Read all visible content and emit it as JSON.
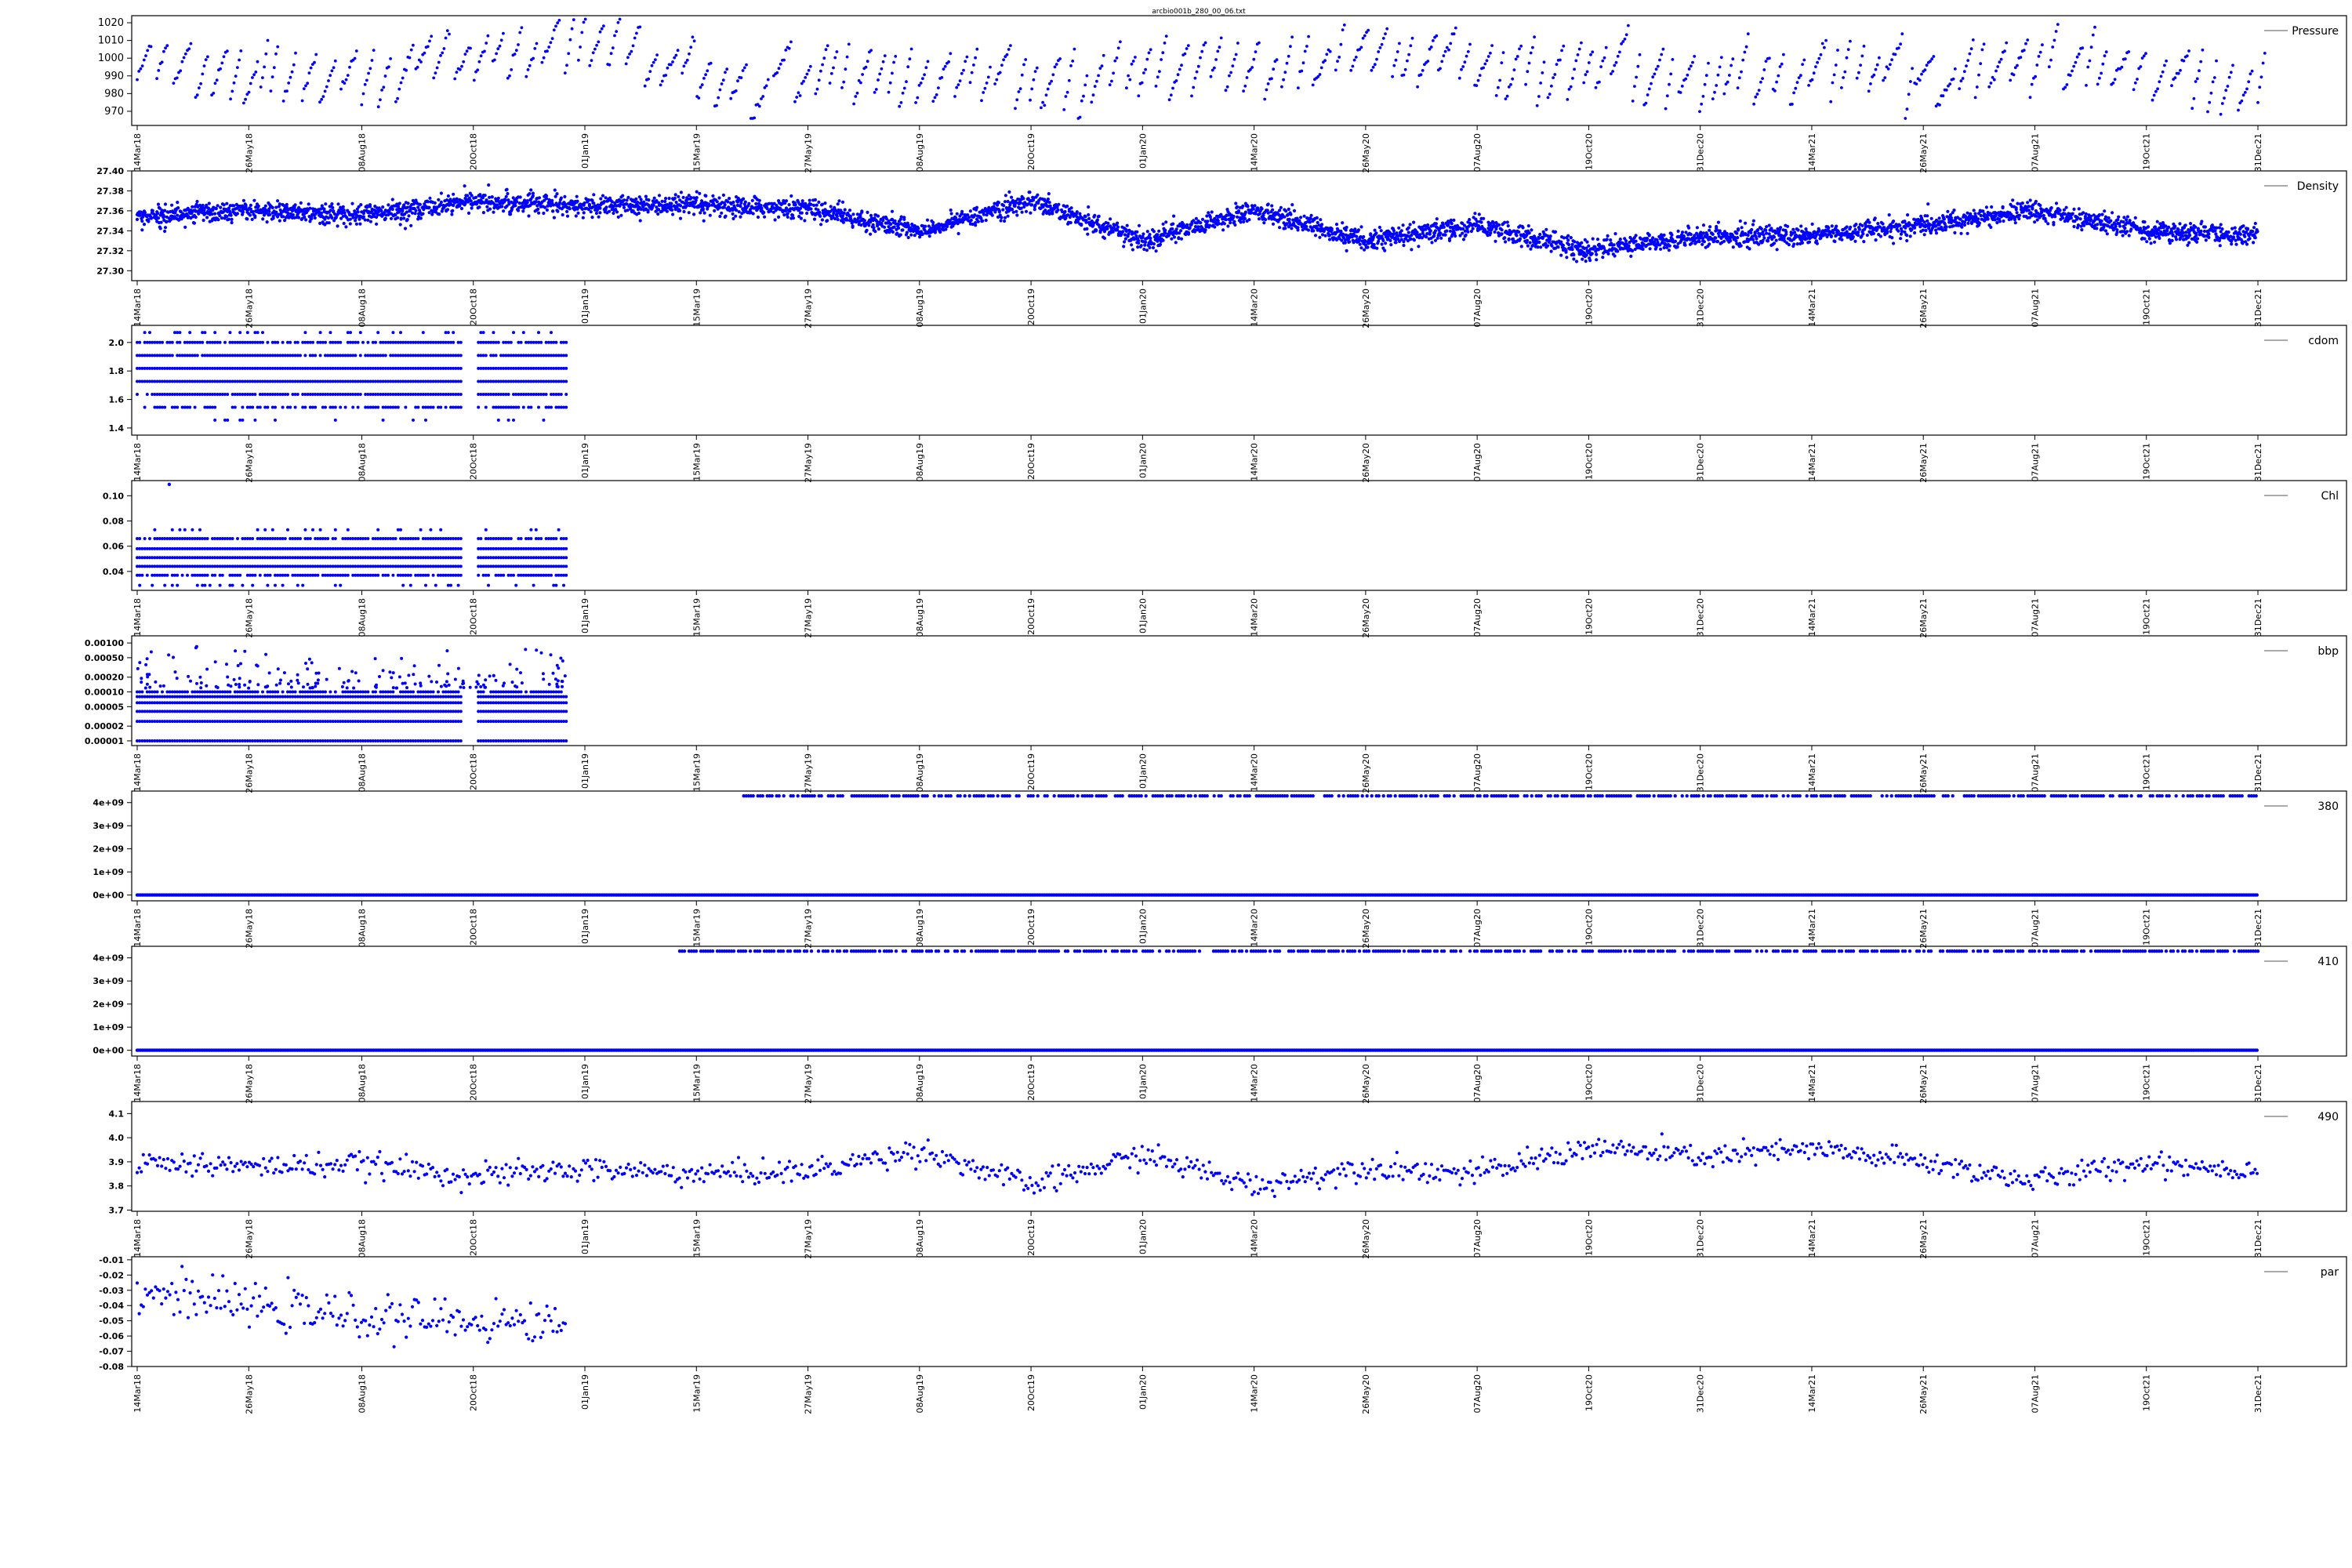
{
  "figure": {
    "title": "arcbio001b_280_00_06.txt"
  },
  "x_ticks": [
    "14Mar18",
    "26May18",
    "08Aug18",
    "20Oct18",
    "01Jan19",
    "15Mar19",
    "27May19",
    "08Aug19",
    "20Oct19",
    "01Jan20",
    "14Mar20",
    "26May20",
    "07Aug20",
    "19Oct20",
    "31Dec20",
    "14Mar21",
    "26May21",
    "07Aug21",
    "19Oct21",
    "31Dec21"
  ],
  "colors": {
    "series": "#0000ff",
    "axes": "#000000",
    "legend_line": "#555555"
  },
  "chart_data": [
    {
      "type": "scatter",
      "legend": "Pressure",
      "legend_position": "top-right",
      "x_range": [
        "14Mar18",
        "31Dec21"
      ],
      "ylim": [
        962,
        1024
      ],
      "yscale": "linear",
      "y_ticks": [
        "970",
        "980",
        "990",
        "1000",
        "1010",
        "1020"
      ],
      "y_tick_values": [
        970,
        980,
        990,
        1000,
        1010,
        1020
      ],
      "data_coverage": [
        "14Mar18",
        "31Dec21"
      ],
      "pattern": "sawtooth",
      "typical_range": [
        968,
        1008
      ],
      "mean": 990,
      "sample_points": [
        {
          "x": "14Mar18",
          "y": 995
        },
        {
          "x": "26May18",
          "y": 990
        },
        {
          "x": "08Aug18",
          "y": 992
        },
        {
          "x": "20Oct18",
          "y": 998
        },
        {
          "x": "01Jan19",
          "y": 1015
        },
        {
          "x": "15Mar19",
          "y": 985
        },
        {
          "x": "27May19",
          "y": 990
        },
        {
          "x": "08Aug19",
          "y": 993
        },
        {
          "x": "20Oct19",
          "y": 990
        },
        {
          "x": "01Jan20",
          "y": 988
        },
        {
          "x": "14Mar20",
          "y": 995
        },
        {
          "x": "26May20",
          "y": 1005
        },
        {
          "x": "07Aug20",
          "y": 995
        },
        {
          "x": "19Oct20",
          "y": 993
        },
        {
          "x": "31Dec20",
          "y": 988
        },
        {
          "x": "14Mar21",
          "y": 995
        },
        {
          "x": "26May21",
          "y": 990
        },
        {
          "x": "07Aug21",
          "y": 997
        },
        {
          "x": "19Oct21",
          "y": 993
        },
        {
          "x": "31Dec21",
          "y": 985
        }
      ]
    },
    {
      "type": "scatter",
      "legend": "Density",
      "legend_position": "top-right",
      "x_range": [
        "14Mar18",
        "31Dec21"
      ],
      "ylim": [
        27.29,
        27.4
      ],
      "yscale": "linear",
      "y_ticks": [
        "27.30",
        "27.32",
        "27.34",
        "27.36",
        "27.38",
        "27.40"
      ],
      "y_tick_values": [
        27.3,
        27.32,
        27.34,
        27.36,
        27.38,
        27.4
      ],
      "data_coverage": [
        "14Mar18",
        "31Dec21"
      ],
      "pattern": "band",
      "band_halfwidth": 0.009,
      "trend": [
        {
          "x": "14Mar18",
          "y": 27.355
        },
        {
          "x": "26May18",
          "y": 27.36
        },
        {
          "x": "08Aug18",
          "y": 27.355
        },
        {
          "x": "20Oct18",
          "y": 27.37
        },
        {
          "x": "01Jan19",
          "y": 27.365
        },
        {
          "x": "15Mar19",
          "y": 27.365
        },
        {
          "x": "27May19",
          "y": 27.362
        },
        {
          "x": "08Aug19",
          "y": 27.34
        },
        {
          "x": "20Oct19",
          "y": 27.37
        },
        {
          "x": "01Jan20",
          "y": 27.33
        },
        {
          "x": "14Mar20",
          "y": 27.36
        },
        {
          "x": "26May20",
          "y": 27.33
        },
        {
          "x": "07Aug20",
          "y": 27.345
        },
        {
          "x": "19Oct20",
          "y": 27.32
        },
        {
          "x": "31Dec20",
          "y": 27.335
        },
        {
          "x": "14Mar21",
          "y": 27.335
        },
        {
          "x": "26May21",
          "y": 27.345
        },
        {
          "x": "07Aug21",
          "y": 27.36
        },
        {
          "x": "19Oct21",
          "y": 27.34
        },
        {
          "x": "31Dec21",
          "y": 27.335
        }
      ]
    },
    {
      "type": "scatter",
      "legend": "cdom",
      "legend_position": "top-right",
      "x_range": [
        "14Mar18",
        "31Dec21"
      ],
      "ylim": [
        1.35,
        2.12
      ],
      "yscale": "linear",
      "y_ticks": [
        "1.4",
        "1.6",
        "1.8",
        "2.0"
      ],
      "y_tick_values": [
        1.4,
        1.6,
        1.8,
        2.0
      ],
      "data_coverage": [
        "14Mar18",
        "20Dec18"
      ],
      "pattern": "levels",
      "levels": [
        1.455,
        1.545,
        1.636,
        1.727,
        1.818,
        1.909,
        2.0,
        2.07
      ],
      "level_density": [
        0.12,
        0.55,
        0.95,
        1.0,
        1.0,
        0.95,
        0.8,
        0.2
      ]
    },
    {
      "type": "scatter",
      "legend": "Chl",
      "legend_position": "top-right",
      "x_range": [
        "14Mar18",
        "31Dec21"
      ],
      "ylim": [
        0.025,
        0.112
      ],
      "yscale": "linear",
      "y_ticks": [
        "0.04",
        "0.06",
        "0.08",
        "0.10"
      ],
      "y_tick_values": [
        0.04,
        0.06,
        0.08,
        0.1
      ],
      "data_coverage": [
        "14Mar18",
        "20Dec18"
      ],
      "pattern": "levels",
      "levels": [
        0.029,
        0.037,
        0.044,
        0.051,
        0.058,
        0.066,
        0.073
      ],
      "level_density": [
        0.15,
        0.85,
        1.0,
        1.0,
        1.0,
        0.8,
        0.15
      ],
      "outliers": [
        {
          "x": "04Apr18",
          "y": 0.109
        }
      ]
    },
    {
      "type": "scatter",
      "legend": "bbp",
      "legend_position": "top-right",
      "x_range": [
        "14Mar18",
        "31Dec21"
      ],
      "yscale": "log",
      "ylim": [
        8e-06,
        0.0014
      ],
      "y_ticks": [
        "0.00001",
        "0.00002",
        "0.00005",
        "0.00010",
        "0.00020",
        "0.00050",
        "0.00100"
      ],
      "y_tick_values": [
        1e-05,
        2e-05,
        5e-05,
        0.0001,
        0.0002,
        0.0005,
        0.001
      ],
      "data_coverage": [
        "14Mar18",
        "20Dec18"
      ],
      "pattern": "levels",
      "levels": [
        1e-05,
        2.5e-05,
        4e-05,
        6e-05,
        8e-05,
        0.0001
      ],
      "level_density": [
        1.0,
        1.0,
        1.0,
        1.0,
        1.0,
        0.85
      ],
      "scatter_above": [
        0.00012,
        0.0011
      ]
    },
    {
      "type": "scatter",
      "legend": "380",
      "legend_position": "top-right",
      "x_range": [
        "14Mar18",
        "31Dec21"
      ],
      "ylim": [
        -250000000.0,
        4500000000.0
      ],
      "yscale": "linear",
      "y_ticks": [
        "0e+00",
        "1e+09",
        "2e+09",
        "3e+09",
        "4e+09"
      ],
      "y_tick_values": [
        0,
        1000000000.0,
        2000000000.0,
        3000000000.0,
        4000000000.0
      ],
      "data_coverage": [
        "14Mar18",
        "31Dec21"
      ],
      "pattern": "two-levels",
      "levels": [
        0,
        4290000000.0
      ],
      "upper_level_start": "15Apr19"
    },
    {
      "type": "scatter",
      "legend": "410",
      "legend_position": "top-right",
      "x_range": [
        "14Mar18",
        "31Dec21"
      ],
      "ylim": [
        -250000000.0,
        4500000000.0
      ],
      "yscale": "linear",
      "y_ticks": [
        "0e+00",
        "1e+09",
        "2e+09",
        "3e+09",
        "4e+09"
      ],
      "y_tick_values": [
        0,
        1000000000.0,
        2000000000.0,
        3000000000.0,
        4000000000.0
      ],
      "data_coverage": [
        "14Mar18",
        "31Dec21"
      ],
      "pattern": "two-levels",
      "levels": [
        0,
        4290000000.0
      ],
      "upper_level_start": "01Mar19"
    },
    {
      "type": "scatter",
      "legend": "490",
      "legend_position": "top-right",
      "x_range": [
        "14Mar18",
        "31Dec21"
      ],
      "ylim": [
        3.695,
        4.15
      ],
      "yscale": "linear",
      "y_ticks": [
        "3.7",
        "3.8",
        "3.9",
        "4.0",
        "4.1"
      ],
      "y_tick_values": [
        3.7,
        3.8,
        3.9,
        4.0,
        4.1
      ],
      "data_coverage": [
        "14Mar18",
        "31Dec21"
      ],
      "pattern": "band",
      "band_halfwidth": 0.045,
      "trend": [
        {
          "x": "14Mar18",
          "y": 3.9
        },
        {
          "x": "26May18",
          "y": 3.88
        },
        {
          "x": "08Aug18",
          "y": 3.89
        },
        {
          "x": "20Oct18",
          "y": 3.84
        },
        {
          "x": "01Jan19",
          "y": 3.87
        },
        {
          "x": "15Mar19",
          "y": 3.85
        },
        {
          "x": "27May19",
          "y": 3.86
        },
        {
          "x": "08Aug19",
          "y": 3.95
        },
        {
          "x": "20Oct19",
          "y": 3.8
        },
        {
          "x": "01Jan20",
          "y": 3.93
        },
        {
          "x": "14Mar20",
          "y": 3.8
        },
        {
          "x": "26May20",
          "y": 3.88
        },
        {
          "x": "07Aug20",
          "y": 3.85
        },
        {
          "x": "19Oct20",
          "y": 3.96
        },
        {
          "x": "31Dec20",
          "y": 3.92
        },
        {
          "x": "14Mar21",
          "y": 3.95
        },
        {
          "x": "26May21",
          "y": 3.9
        },
        {
          "x": "07Aug21",
          "y": 3.82
        },
        {
          "x": "19Oct21",
          "y": 3.9
        },
        {
          "x": "31Dec21",
          "y": 3.86
        }
      ]
    },
    {
      "type": "scatter",
      "legend": "par",
      "legend_position": "top-right",
      "x_range": [
        "14Mar18",
        "31Dec21"
      ],
      "ylim": [
        -0.08,
        -0.008
      ],
      "yscale": "linear",
      "y_ticks": [
        "-0.08",
        "-0.07",
        "-0.06",
        "-0.05",
        "-0.04",
        "-0.03",
        "-0.02",
        "-0.01"
      ],
      "y_tick_values": [
        -0.08,
        -0.07,
        -0.06,
        -0.05,
        -0.04,
        -0.03,
        -0.02,
        -0.01
      ],
      "data_coverage": [
        "14Mar18",
        "20Dec18"
      ],
      "pattern": "band",
      "band_halfwidth": 0.012,
      "trend": [
        {
          "x": "14Mar18",
          "y": -0.03
        },
        {
          "x": "26May18",
          "y": -0.04
        },
        {
          "x": "08Aug18",
          "y": -0.048
        },
        {
          "x": "20Oct18",
          "y": -0.05
        },
        {
          "x": "20Dec18",
          "y": -0.052
        }
      ]
    }
  ]
}
